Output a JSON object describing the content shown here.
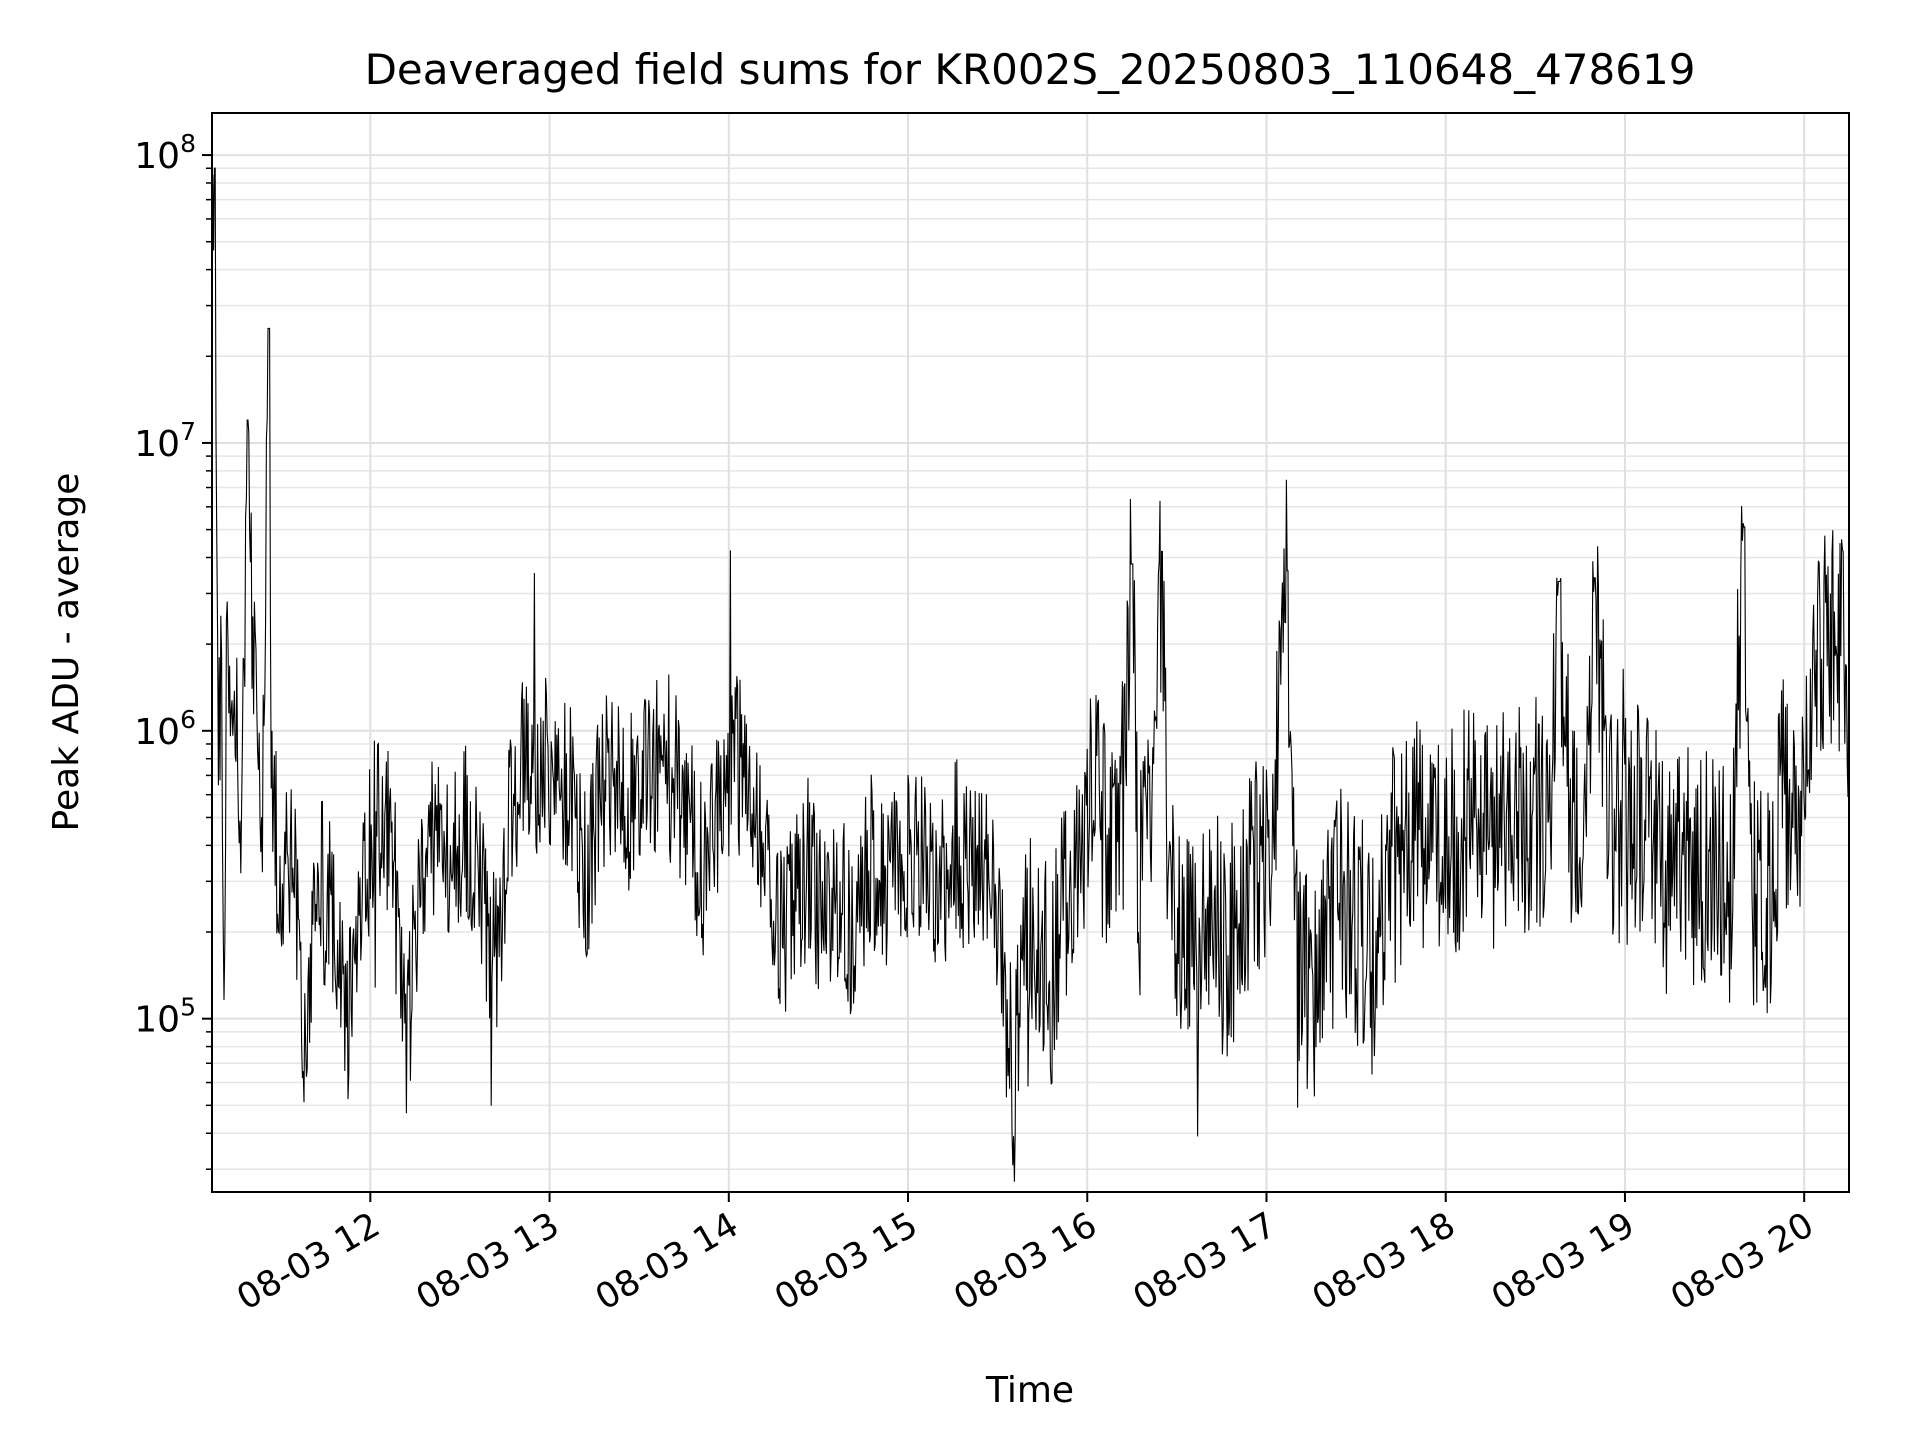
{
  "chart_data": {
    "type": "line",
    "title": "Deaveraged field sums for KR002S_20250803_110648_478619",
    "xlabel": "Time",
    "ylabel": "Peak ADU - average",
    "yscale": "log",
    "ylim": [
      25000,
      140000000
    ],
    "xlim": [
      "2025-08-03T11:07:00",
      "2025-08-03T20:15:00"
    ],
    "x_tick_labels": [
      "08-03 12",
      "08-03 13",
      "08-03 14",
      "08-03 15",
      "08-03 16",
      "08-03 17",
      "08-03 18",
      "08-03 19",
      "08-03 20"
    ],
    "x_tick_times": [
      "2025-08-03T12:00",
      "2025-08-03T13:00",
      "2025-08-03T14:00",
      "2025-08-03T15:00",
      "2025-08-03T16:00",
      "2025-08-03T17:00",
      "2025-08-03T18:00",
      "2025-08-03T19:00",
      "2025-08-03T20:00"
    ],
    "y_ticks": [
      {
        "base": "10",
        "exp": "5",
        "value": 100000
      },
      {
        "base": "10",
        "exp": "6",
        "value": 1000000
      },
      {
        "base": "10",
        "exp": "7",
        "value": 10000000
      },
      {
        "base": "10",
        "exp": "8",
        "value": 100000000
      }
    ],
    "grid": true,
    "line_color": "#000000",
    "series": [
      {
        "points": [
          [
            "11:07",
            85000000
          ],
          [
            "11:08",
            90000000
          ],
          [
            "11:09",
            600000
          ],
          [
            "11:10",
            1800000
          ],
          [
            "11:11",
            130000
          ],
          [
            "11:12",
            2000000
          ],
          [
            "11:14",
            1200000
          ],
          [
            "11:17",
            600000
          ],
          [
            "11:19",
            12000000
          ],
          [
            "11:21",
            1500000
          ],
          [
            "11:24",
            600000
          ],
          [
            "11:26",
            25000000
          ],
          [
            "11:27",
            500000
          ],
          [
            "11:30",
            350000
          ],
          [
            "11:35",
            400000
          ],
          [
            "11:38",
            85000
          ],
          [
            "11:42",
            300000
          ],
          [
            "11:47",
            250000
          ],
          [
            "11:52",
            90000
          ],
          [
            "11:57",
            300000
          ],
          [
            "12:02",
            500000
          ],
          [
            "12:07",
            450000
          ],
          [
            "12:12",
            75000
          ],
          [
            "12:17",
            350000
          ],
          [
            "12:22",
            500000
          ],
          [
            "12:27",
            280000
          ],
          [
            "12:32",
            450000
          ],
          [
            "12:37",
            300000
          ],
          [
            "12:42",
            160000
          ],
          [
            "12:47",
            550000
          ],
          [
            "12:52",
            850000
          ],
          [
            "12:57",
            700000
          ],
          [
            "13:02",
            800000
          ],
          [
            "13:07",
            600000
          ],
          [
            "13:12",
            300000
          ],
          [
            "13:17",
            650000
          ],
          [
            "13:22",
            700000
          ],
          [
            "13:27",
            550000
          ],
          [
            "13:32",
            700000
          ],
          [
            "13:37",
            750000
          ],
          [
            "13:42",
            650000
          ],
          [
            "13:47",
            500000
          ],
          [
            "13:52",
            300000
          ],
          [
            "13:57",
            550000
          ],
          [
            "14:02",
            800000
          ],
          [
            "14:07",
            700000
          ],
          [
            "14:12",
            400000
          ],
          [
            "14:17",
            200000
          ],
          [
            "14:22",
            250000
          ],
          [
            "14:27",
            350000
          ],
          [
            "14:32",
            200000
          ],
          [
            "14:37",
            250000
          ],
          [
            "14:42",
            200000
          ],
          [
            "14:47",
            350000
          ],
          [
            "14:52",
            300000
          ],
          [
            "14:57",
            350000
          ],
          [
            "15:02",
            400000
          ],
          [
            "15:07",
            350000
          ],
          [
            "15:12",
            300000
          ],
          [
            "15:17",
            400000
          ],
          [
            "15:22",
            300000
          ],
          [
            "15:27",
            350000
          ],
          [
            "15:32",
            130000
          ],
          [
            "15:35",
            70000
          ],
          [
            "15:38",
            110000
          ],
          [
            "15:42",
            250000
          ],
          [
            "15:47",
            120000
          ],
          [
            "15:52",
            220000
          ],
          [
            "15:57",
            350000
          ],
          [
            "16:02",
            600000
          ],
          [
            "16:07",
            400000
          ],
          [
            "16:12",
            600000
          ],
          [
            "16:15",
            3800000
          ],
          [
            "16:17",
            400000
          ],
          [
            "16:22",
            500000
          ],
          [
            "16:25",
            4200000
          ],
          [
            "16:27",
            300000
          ],
          [
            "16:32",
            200000
          ],
          [
            "16:37",
            150000
          ],
          [
            "16:42",
            220000
          ],
          [
            "16:47",
            180000
          ],
          [
            "16:52",
            250000
          ],
          [
            "16:57",
            350000
          ],
          [
            "17:02",
            400000
          ],
          [
            "17:07",
            3600000
          ],
          [
            "17:10",
            200000
          ],
          [
            "17:15",
            100000
          ],
          [
            "17:20",
            200000
          ],
          [
            "17:25",
            300000
          ],
          [
            "17:30",
            200000
          ],
          [
            "17:35",
            150000
          ],
          [
            "17:40",
            250000
          ],
          [
            "17:45",
            400000
          ],
          [
            "17:50",
            500000
          ],
          [
            "17:55",
            400000
          ],
          [
            "18:00",
            350000
          ],
          [
            "18:05",
            450000
          ],
          [
            "18:10",
            500000
          ],
          [
            "18:15",
            400000
          ],
          [
            "18:20",
            450000
          ],
          [
            "18:25",
            500000
          ],
          [
            "18:30",
            550000
          ],
          [
            "18:35",
            500000
          ],
          [
            "18:38",
            3300000
          ],
          [
            "18:42",
            500000
          ],
          [
            "18:47",
            450000
          ],
          [
            "18:50",
            3400000
          ],
          [
            "18:55",
            500000
          ],
          [
            "19:00",
            450000
          ],
          [
            "19:05",
            500000
          ],
          [
            "19:10",
            400000
          ],
          [
            "19:15",
            300000
          ],
          [
            "19:20",
            350000
          ],
          [
            "19:25",
            300000
          ],
          [
            "19:30",
            400000
          ],
          [
            "19:35",
            250000
          ],
          [
            "19:40",
            5100000
          ],
          [
            "19:42",
            300000
          ],
          [
            "19:47",
            200000
          ],
          [
            "19:52",
            600000
          ],
          [
            "19:57",
            500000
          ],
          [
            "20:00",
            600000
          ],
          [
            "20:02",
            1500000
          ],
          [
            "20:05",
            1600000
          ],
          [
            "20:08",
            2000000
          ],
          [
            "20:11",
            1800000
          ],
          [
            "20:13",
            2500000
          ],
          [
            "20:15",
            1200000
          ]
        ]
      }
    ]
  }
}
